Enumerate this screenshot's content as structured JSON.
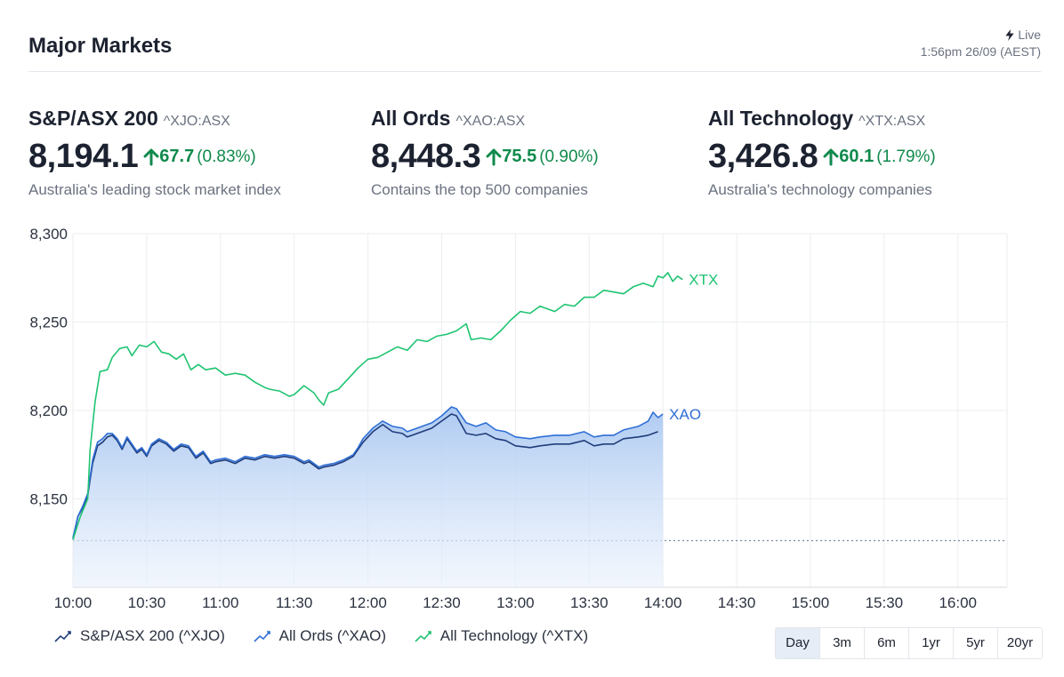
{
  "header": {
    "title": "Major Markets",
    "live_label": "Live",
    "timestamp": "1:56pm 26/09 (AEST)"
  },
  "indices": [
    {
      "name": "S&P/ASX 200",
      "code": "^XJO:ASX",
      "value": "8,194.1",
      "change": "67.7",
      "change_pct": "(0.83%)",
      "description": "Australia's leading stock market index"
    },
    {
      "name": "All Ords",
      "code": "^XAO:ASX",
      "value": "8,448.3",
      "change": "75.5",
      "change_pct": "(0.90%)",
      "description": "Contains the top 500 companies"
    },
    {
      "name": "All Technology",
      "code": "^XTX:ASX",
      "value": "3,426.8",
      "change": "60.1",
      "change_pct": "(1.79%)",
      "description": "Australia's technology companies"
    }
  ],
  "colors": {
    "xjo": "#1f3c7a",
    "xao": "#2f6fd6",
    "xtx": "#1fc472",
    "up": "#0f8a4c",
    "area": "#bcd5f5"
  },
  "chart_data": {
    "type": "line",
    "x_ticks": [
      "10:00",
      "10:30",
      "11:00",
      "11:30",
      "12:00",
      "12:30",
      "13:00",
      "13:30",
      "14:00",
      "14:30",
      "15:00",
      "15:30",
      "16:00"
    ],
    "y_ticks": [
      "8,150",
      "8,200",
      "8,250",
      "8,300"
    ],
    "ylim": [
      8100,
      8300
    ],
    "xlim_minutes": [
      0,
      380
    ],
    "baseline": 8126.4,
    "grid": true,
    "series": [
      {
        "key": "xjo",
        "name": "S&P/ASX 200 (^XJO)",
        "end_label": "",
        "points": [
          [
            0,
            8127
          ],
          [
            2,
            8140
          ],
          [
            4,
            8145
          ],
          [
            6,
            8152
          ],
          [
            8,
            8170
          ],
          [
            10,
            8180
          ],
          [
            12,
            8182
          ],
          [
            14,
            8185
          ],
          [
            16,
            8186
          ],
          [
            18,
            8183
          ],
          [
            20,
            8178
          ],
          [
            22,
            8184
          ],
          [
            24,
            8180
          ],
          [
            26,
            8176
          ],
          [
            28,
            8178
          ],
          [
            30,
            8174
          ],
          [
            32,
            8180
          ],
          [
            35,
            8183
          ],
          [
            38,
            8181
          ],
          [
            41,
            8177
          ],
          [
            44,
            8180
          ],
          [
            47,
            8179
          ],
          [
            50,
            8173
          ],
          [
            53,
            8176
          ],
          [
            56,
            8170
          ],
          [
            58,
            8171
          ],
          [
            62,
            8172
          ],
          [
            66,
            8170
          ],
          [
            70,
            8173
          ],
          [
            74,
            8172
          ],
          [
            78,
            8174
          ],
          [
            82,
            8173
          ],
          [
            86,
            8174
          ],
          [
            90,
            8173
          ],
          [
            94,
            8170
          ],
          [
            96,
            8171
          ],
          [
            100,
            8167
          ],
          [
            102,
            8168
          ],
          [
            106,
            8169
          ],
          [
            110,
            8171
          ],
          [
            114,
            8174
          ],
          [
            116,
            8178
          ],
          [
            118,
            8182
          ],
          [
            122,
            8188
          ],
          [
            126,
            8192
          ],
          [
            130,
            8188
          ],
          [
            134,
            8187
          ],
          [
            136,
            8185
          ],
          [
            138,
            8186
          ],
          [
            142,
            8188
          ],
          [
            146,
            8190
          ],
          [
            150,
            8194
          ],
          [
            154,
            8198
          ],
          [
            156,
            8197
          ],
          [
            158,
            8192
          ],
          [
            160,
            8187
          ],
          [
            164,
            8186
          ],
          [
            168,
            8187
          ],
          [
            172,
            8184
          ],
          [
            176,
            8183
          ],
          [
            180,
            8180
          ],
          [
            186,
            8179
          ],
          [
            190,
            8180
          ],
          [
            196,
            8181
          ],
          [
            202,
            8181
          ],
          [
            208,
            8183
          ],
          [
            212,
            8180
          ],
          [
            216,
            8181
          ],
          [
            220,
            8181
          ],
          [
            224,
            8184
          ],
          [
            230,
            8185
          ],
          [
            234,
            8186
          ],
          [
            238,
            8188
          ],
          [
            232,
            8185
          ]
        ]
      },
      {
        "key": "xao",
        "name": "All Ords (^XAO)",
        "end_label": "XAO",
        "points": [
          [
            0,
            8128
          ],
          [
            2,
            8140
          ],
          [
            4,
            8146
          ],
          [
            6,
            8153
          ],
          [
            8,
            8172
          ],
          [
            10,
            8182
          ],
          [
            12,
            8184
          ],
          [
            14,
            8187
          ],
          [
            16,
            8187
          ],
          [
            18,
            8184
          ],
          [
            20,
            8179
          ],
          [
            22,
            8185
          ],
          [
            24,
            8181
          ],
          [
            26,
            8177
          ],
          [
            28,
            8179
          ],
          [
            30,
            8175
          ],
          [
            32,
            8181
          ],
          [
            35,
            8184
          ],
          [
            38,
            8182
          ],
          [
            41,
            8178
          ],
          [
            44,
            8181
          ],
          [
            47,
            8180
          ],
          [
            50,
            8174
          ],
          [
            53,
            8177
          ],
          [
            56,
            8171
          ],
          [
            58,
            8172
          ],
          [
            62,
            8173
          ],
          [
            66,
            8171
          ],
          [
            70,
            8174
          ],
          [
            74,
            8173
          ],
          [
            78,
            8175
          ],
          [
            82,
            8174
          ],
          [
            86,
            8175
          ],
          [
            90,
            8174
          ],
          [
            94,
            8171
          ],
          [
            96,
            8172
          ],
          [
            100,
            8168
          ],
          [
            102,
            8169
          ],
          [
            106,
            8170
          ],
          [
            110,
            8172
          ],
          [
            114,
            8175
          ],
          [
            116,
            8179
          ],
          [
            118,
            8184
          ],
          [
            122,
            8190
          ],
          [
            126,
            8194
          ],
          [
            130,
            8191
          ],
          [
            134,
            8190
          ],
          [
            136,
            8188
          ],
          [
            138,
            8189
          ],
          [
            142,
            8191
          ],
          [
            146,
            8193
          ],
          [
            150,
            8197
          ],
          [
            154,
            8202
          ],
          [
            156,
            8201
          ],
          [
            158,
            8197
          ],
          [
            160,
            8193
          ],
          [
            164,
            8191
          ],
          [
            168,
            8193
          ],
          [
            172,
            8189
          ],
          [
            176,
            8188
          ],
          [
            180,
            8185
          ],
          [
            186,
            8184
          ],
          [
            190,
            8185
          ],
          [
            196,
            8186
          ],
          [
            202,
            8186
          ],
          [
            208,
            8188
          ],
          [
            212,
            8185
          ],
          [
            216,
            8186
          ],
          [
            220,
            8186
          ],
          [
            224,
            8189
          ],
          [
            230,
            8191
          ],
          [
            234,
            8194
          ],
          [
            236,
            8199
          ],
          [
            238,
            8196
          ],
          [
            240,
            8198
          ]
        ]
      },
      {
        "key": "xtx",
        "name": "All Technology (^XTX)",
        "end_label": "XTX",
        "points": [
          [
            0,
            8127
          ],
          [
            3,
            8140
          ],
          [
            6,
            8150
          ],
          [
            7,
            8178
          ],
          [
            9,
            8205
          ],
          [
            11,
            8222
          ],
          [
            14,
            8223
          ],
          [
            16,
            8230
          ],
          [
            19,
            8235
          ],
          [
            22,
            8236
          ],
          [
            24,
            8231
          ],
          [
            27,
            8237
          ],
          [
            30,
            8236
          ],
          [
            33,
            8239
          ],
          [
            36,
            8233
          ],
          [
            39,
            8232
          ],
          [
            42,
            8229
          ],
          [
            45,
            8232
          ],
          [
            48,
            8223
          ],
          [
            51,
            8226
          ],
          [
            54,
            8223
          ],
          [
            58,
            8224
          ],
          [
            62,
            8220
          ],
          [
            66,
            8221
          ],
          [
            70,
            8220
          ],
          [
            74,
            8216
          ],
          [
            78,
            8213
          ],
          [
            80,
            8212
          ],
          [
            84,
            8211
          ],
          [
            88,
            8208
          ],
          [
            90,
            8209
          ],
          [
            94,
            8214
          ],
          [
            98,
            8210
          ],
          [
            100,
            8206
          ],
          [
            102,
            8203
          ],
          [
            104,
            8210
          ],
          [
            108,
            8212
          ],
          [
            112,
            8218
          ],
          [
            116,
            8224
          ],
          [
            120,
            8229
          ],
          [
            124,
            8230
          ],
          [
            128,
            8233
          ],
          [
            132,
            8236
          ],
          [
            136,
            8234
          ],
          [
            140,
            8240
          ],
          [
            144,
            8239
          ],
          [
            148,
            8242
          ],
          [
            152,
            8243
          ],
          [
            156,
            8245
          ],
          [
            160,
            8249
          ],
          [
            162,
            8240
          ],
          [
            166,
            8241
          ],
          [
            170,
            8240
          ],
          [
            174,
            8245
          ],
          [
            178,
            8251
          ],
          [
            182,
            8256
          ],
          [
            186,
            8255
          ],
          [
            190,
            8259
          ],
          [
            196,
            8256
          ],
          [
            200,
            8260
          ],
          [
            204,
            8259
          ],
          [
            208,
            8264
          ],
          [
            212,
            8264
          ],
          [
            216,
            8268
          ],
          [
            220,
            8267
          ],
          [
            224,
            8266
          ],
          [
            228,
            8270
          ],
          [
            232,
            8272
          ],
          [
            236,
            8270
          ],
          [
            238,
            8276
          ],
          [
            240,
            8275
          ],
          [
            242,
            8278
          ],
          [
            244,
            8273
          ],
          [
            246,
            8276
          ],
          [
            248,
            8274
          ]
        ]
      }
    ],
    "legend_placement": "bottom-left"
  },
  "range_buttons": [
    "Day",
    "3m",
    "6m",
    "1yr",
    "5yr",
    "20yr"
  ],
  "selected_range": "Day"
}
